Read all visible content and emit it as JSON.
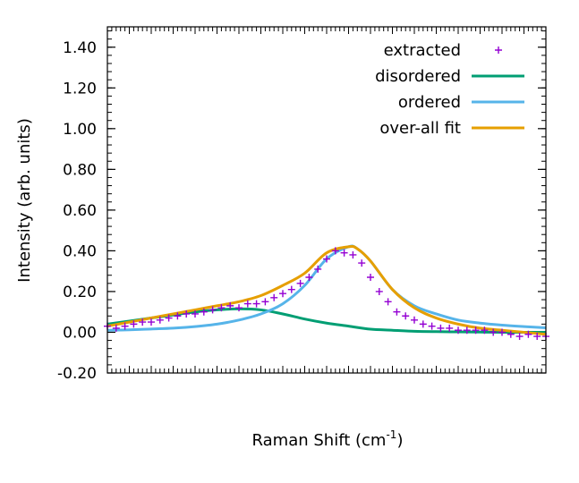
{
  "chart_data": {
    "type": "line",
    "xlabel": "Raman Shift (cm",
    "xlabel_superscript": "-1",
    "xlabel_suffix": ")",
    "ylabel": "Intensity (arb. units)",
    "ylim": [
      -0.2,
      1.5
    ],
    "yticks": [
      {
        "value": -0.2,
        "label": "-0.20"
      },
      {
        "value": 0.0,
        "label": "0.00"
      },
      {
        "value": 0.2,
        "label": "0.20"
      },
      {
        "value": 0.4,
        "label": "0.40"
      },
      {
        "value": 0.6,
        "label": "0.60"
      },
      {
        "value": 0.8,
        "label": "0.80"
      },
      {
        "value": 1.0,
        "label": "1.00"
      },
      {
        "value": 1.2,
        "label": "1.20"
      },
      {
        "value": 1.4,
        "label": "1.40"
      }
    ],
    "xlim": [
      0,
      100
    ],
    "x_tick_labels_shown": false,
    "grid": false,
    "legend_position": "top-right",
    "series": [
      {
        "name": "extracted",
        "style": "points",
        "marker": "plus",
        "color": "#9400d3",
        "x": [
          0,
          2,
          4,
          6,
          8,
          10,
          12,
          14,
          16,
          18,
          20,
          22,
          24,
          26,
          28,
          30,
          32,
          34,
          36,
          38,
          40,
          42,
          44,
          46,
          48,
          50,
          52,
          54,
          56,
          58,
          60,
          62,
          64,
          66,
          68,
          70,
          72,
          74,
          76,
          78,
          80,
          82,
          84,
          86,
          88,
          90,
          92,
          94,
          96,
          98,
          100
        ],
        "y": [
          0.03,
          0.02,
          0.03,
          0.04,
          0.05,
          0.05,
          0.06,
          0.07,
          0.08,
          0.09,
          0.09,
          0.1,
          0.11,
          0.12,
          0.13,
          0.12,
          0.14,
          0.14,
          0.15,
          0.17,
          0.19,
          0.21,
          0.24,
          0.27,
          0.31,
          0.36,
          0.4,
          0.39,
          0.38,
          0.34,
          0.27,
          0.2,
          0.15,
          0.1,
          0.08,
          0.06,
          0.04,
          0.03,
          0.02,
          0.02,
          0.01,
          0.01,
          0.01,
          0.01,
          0.0,
          0.0,
          -0.01,
          -0.02,
          -0.01,
          -0.02,
          -0.02
        ]
      },
      {
        "name": "disordered",
        "style": "line",
        "color": "#009e73",
        "x": [
          0,
          5,
          10,
          15,
          20,
          25,
          30,
          35,
          40,
          45,
          50,
          55,
          60,
          65,
          70,
          75,
          80,
          85,
          90,
          95,
          100
        ],
        "y": [
          0.04,
          0.055,
          0.07,
          0.085,
          0.1,
          0.11,
          0.115,
          0.11,
          0.09,
          0.065,
          0.045,
          0.03,
          0.015,
          0.01,
          0.005,
          0.003,
          0.002,
          0.001,
          0.0,
          0.0,
          0.0
        ]
      },
      {
        "name": "ordered",
        "style": "line",
        "color": "#56b4e9",
        "x": [
          0,
          5,
          10,
          15,
          20,
          25,
          30,
          35,
          40,
          45,
          50,
          55,
          57,
          60,
          65,
          70,
          75,
          80,
          85,
          90,
          95,
          100
        ],
        "y": [
          0.01,
          0.012,
          0.016,
          0.02,
          0.028,
          0.04,
          0.06,
          0.09,
          0.14,
          0.23,
          0.36,
          0.42,
          0.41,
          0.35,
          0.21,
          0.13,
          0.09,
          0.06,
          0.045,
          0.035,
          0.028,
          0.022
        ]
      },
      {
        "name": "over-all fit",
        "style": "line",
        "color": "#e69f00",
        "x": [
          0,
          5,
          10,
          15,
          20,
          25,
          30,
          35,
          40,
          45,
          50,
          55,
          57,
          60,
          65,
          70,
          75,
          80,
          85,
          90,
          95,
          100
        ],
        "y": [
          0.03,
          0.05,
          0.07,
          0.09,
          0.11,
          0.13,
          0.15,
          0.18,
          0.23,
          0.29,
          0.39,
          0.42,
          0.41,
          0.35,
          0.21,
          0.12,
          0.07,
          0.04,
          0.02,
          0.01,
          0.0,
          -0.01
        ]
      }
    ]
  }
}
